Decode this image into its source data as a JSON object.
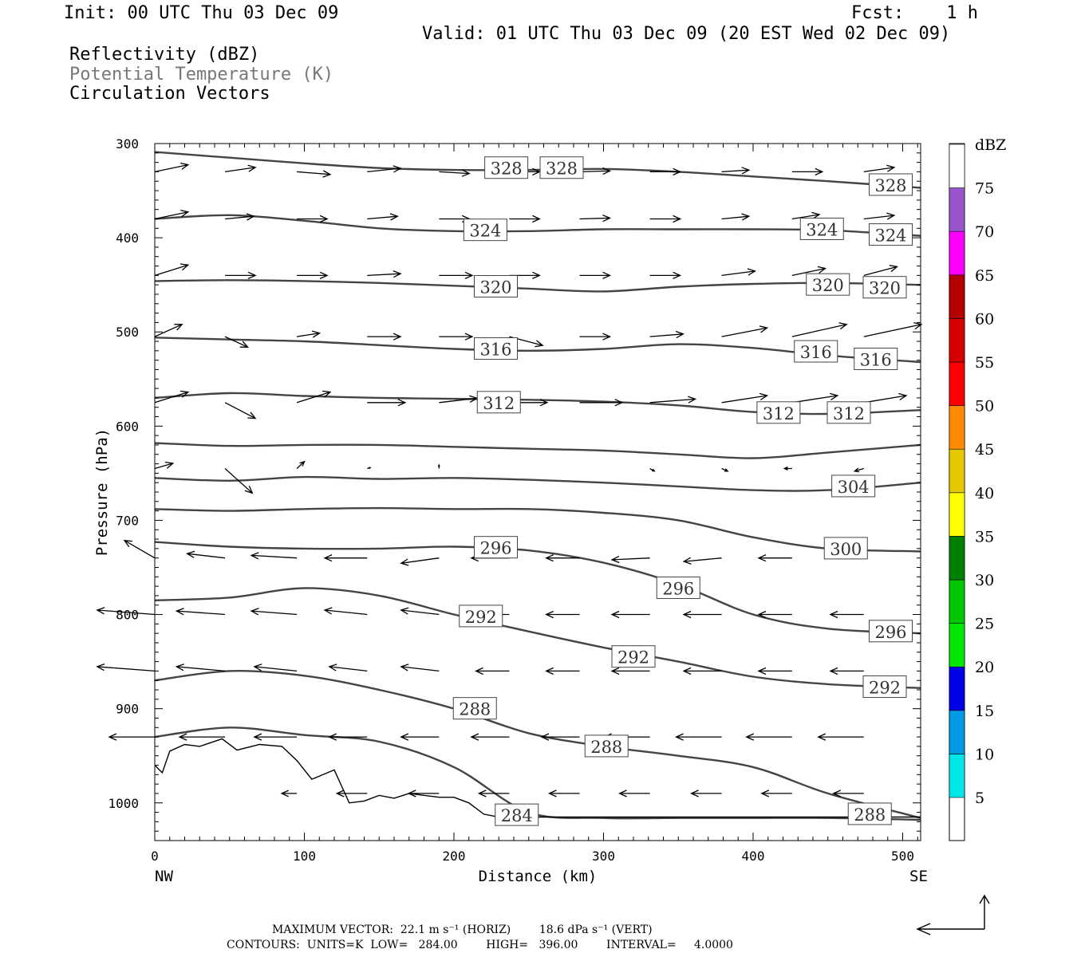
{
  "header": {
    "init": "Init: 00 UTC Thu 03 Dec 09",
    "fcst": "Fcst:    1 h",
    "valid": "Valid: 01 UTC Thu 03 Dec 09 (20 EST Wed 02 Dec 09)",
    "field1": "Reflectivity (dBZ)",
    "field2": "Potential Temperature (K)",
    "field3": "Circulation Vectors"
  },
  "axes": {
    "ylabel": "Pressure (hPa)",
    "xlabel": "Distance (km)",
    "left_end": "NW",
    "right_end": "SE"
  },
  "footer": {
    "max_vector": "MAXIMUM VECTOR:  22.1 m s⁻¹ (HORIZ)        18.6 dPa s⁻¹ (VERT)",
    "contours": "CONTOURS:  UNITS=K  LOW=   284.00        HIGH=   396.00        INTERVAL=     4.0000"
  },
  "colorbar": {
    "title": "dBZ",
    "labels": [
      "5",
      "10",
      "15",
      "20",
      "25",
      "30",
      "35",
      "40",
      "45",
      "50",
      "55",
      "60",
      "65",
      "70",
      "75"
    ],
    "colors": [
      "#00e6e6",
      "#0099e6",
      "#0000e6",
      "#00e600",
      "#00c800",
      "#008000",
      "#ffff00",
      "#e6c800",
      "#ff8c00",
      "#ff0000",
      "#d70000",
      "#b40000",
      "#ff00ff",
      "#9955cc",
      "#ffffff"
    ]
  },
  "chart_data": {
    "type": "contour",
    "xlim": [
      0,
      512
    ],
    "ylim": [
      1040,
      300
    ],
    "y_scale": "linear, inverted",
    "x_ticks": [
      0,
      100,
      200,
      300,
      400,
      500
    ],
    "y_ticks": [
      300,
      400,
      500,
      600,
      700,
      800,
      900,
      1000
    ],
    "contours": [
      {
        "level": 328,
        "x": [
          0,
          50,
          100,
          150,
          200,
          250,
          300,
          350,
          400,
          450,
          512
        ],
        "p": [
          309,
          315,
          321,
          326,
          328,
          328,
          327,
          330,
          335,
          340,
          347
        ]
      },
      {
        "level": 324,
        "x": [
          0,
          50,
          100,
          150,
          200,
          250,
          300,
          350,
          400,
          450,
          512
        ],
        "p": [
          380,
          376,
          382,
          390,
          393,
          393,
          391,
          391,
          391,
          392,
          398
        ]
      },
      {
        "level": 320,
        "x": [
          0,
          50,
          100,
          150,
          200,
          250,
          300,
          350,
          400,
          450,
          512
        ],
        "p": [
          446,
          445,
          446,
          448,
          451,
          454,
          457,
          452,
          449,
          448,
          450
        ]
      },
      {
        "level": 316,
        "x": [
          0,
          50,
          100,
          150,
          200,
          250,
          300,
          350,
          400,
          450,
          512
        ],
        "p": [
          506,
          508,
          510,
          514,
          518,
          520,
          518,
          513,
          517,
          525,
          532
        ]
      },
      {
        "level": 312,
        "x": [
          0,
          50,
          100,
          150,
          200,
          250,
          300,
          350,
          400,
          450,
          512
        ],
        "p": [
          570,
          565,
          568,
          570,
          571,
          572,
          574,
          578,
          585,
          587,
          583
        ]
      },
      {
        "level": 308,
        "x": [
          0,
          50,
          100,
          150,
          200,
          250,
          300,
          350,
          400,
          450,
          512
        ],
        "p": [
          618,
          621,
          620,
          620,
          622,
          624,
          626,
          630,
          634,
          628,
          620
        ]
      },
      {
        "level": 304,
        "x": [
          0,
          50,
          100,
          150,
          200,
          250,
          300,
          350,
          400,
          450,
          512
        ],
        "p": [
          655,
          658,
          654,
          656,
          655,
          657,
          660,
          664,
          668,
          668,
          660
        ]
      },
      {
        "level": 300,
        "x": [
          0,
          50,
          100,
          150,
          200,
          250,
          300,
          350,
          400,
          450,
          512
        ],
        "p": [
          688,
          690,
          688,
          687,
          688,
          688,
          692,
          700,
          718,
          730,
          733
        ]
      },
      {
        "level": 296,
        "x": [
          0,
          50,
          100,
          150,
          200,
          250,
          300,
          350,
          400,
          450,
          512
        ],
        "p": [
          723,
          728,
          730,
          730,
          728,
          732,
          745,
          768,
          800,
          815,
          820
        ]
      },
      {
        "level": 292,
        "x": [
          0,
          50,
          100,
          150,
          200,
          250,
          300,
          350,
          400,
          450,
          512
        ],
        "p": [
          785,
          782,
          772,
          780,
          800,
          818,
          835,
          850,
          866,
          874,
          878
        ]
      },
      {
        "level": 288,
        "x": [
          0,
          50,
          100,
          150,
          200,
          250,
          300,
          350,
          400,
          450,
          512
        ],
        "p": [
          870,
          860,
          865,
          880,
          900,
          926,
          940,
          950,
          962,
          990,
          1016
        ]
      },
      {
        "level": 284,
        "x": [
          0,
          50,
          100,
          150,
          200,
          250,
          300,
          350,
          400,
          450,
          512
        ],
        "p": [
          930,
          920,
          928,
          935,
          962,
          1010,
          1016,
          1016,
          1016,
          1016,
          1018
        ]
      }
    ],
    "contour_labels": [
      {
        "level": 328,
        "x": 235,
        "p": 326
      },
      {
        "level": 328,
        "x": 272,
        "p": 326
      },
      {
        "level": 328,
        "x": 492,
        "p": 344
      },
      {
        "level": 324,
        "x": 221,
        "p": 392
      },
      {
        "level": 324,
        "x": 446,
        "p": 391
      },
      {
        "level": 324,
        "x": 492,
        "p": 397
      },
      {
        "level": 320,
        "x": 228,
        "p": 452
      },
      {
        "level": 320,
        "x": 450,
        "p": 450
      },
      {
        "level": 320,
        "x": 488,
        "p": 453
      },
      {
        "level": 316,
        "x": 228,
        "p": 518
      },
      {
        "level": 316,
        "x": 442,
        "p": 521
      },
      {
        "level": 316,
        "x": 482,
        "p": 529
      },
      {
        "level": 312,
        "x": 230,
        "p": 575
      },
      {
        "level": 312,
        "x": 417,
        "p": 586
      },
      {
        "level": 312,
        "x": 464,
        "p": 586
      },
      {
        "level": 304,
        "x": 467,
        "p": 664
      },
      {
        "level": 300,
        "x": 462,
        "p": 730
      },
      {
        "level": 296,
        "x": 228,
        "p": 729
      },
      {
        "level": 296,
        "x": 350,
        "p": 772
      },
      {
        "level": 296,
        "x": 492,
        "p": 818
      },
      {
        "level": 292,
        "x": 218,
        "p": 802
      },
      {
        "level": 292,
        "x": 320,
        "p": 845
      },
      {
        "level": 292,
        "x": 488,
        "p": 877
      },
      {
        "level": 288,
        "x": 214,
        "p": 900
      },
      {
        "level": 288,
        "x": 302,
        "p": 940
      },
      {
        "level": 288,
        "x": 478,
        "p": 1012
      },
      {
        "level": 284,
        "x": 242,
        "p": 1013
      }
    ],
    "terrain": {
      "x": [
        0,
        5,
        10,
        20,
        30,
        45,
        55,
        70,
        85,
        95,
        105,
        120,
        130,
        140,
        150,
        160,
        170,
        180,
        190,
        200,
        210,
        220,
        230,
        512
      ],
      "p": [
        960,
        968,
        945,
        938,
        940,
        932,
        944,
        938,
        940,
        955,
        975,
        965,
        1000,
        998,
        992,
        995,
        990,
        992,
        994,
        994,
        1000,
        1012,
        1015,
        1015
      ]
    },
    "vectors": {
      "units": {
        "u": "m s⁻¹",
        "w": "dPa s⁻¹ (scaled)"
      },
      "rows": [
        {
          "p": 330,
          "x": [
            0,
            47,
            95,
            142,
            190,
            237,
            284,
            331,
            379,
            426,
            474
          ],
          "u": [
            22,
            20,
            22,
            22,
            20,
            20,
            20,
            20,
            18,
            20,
            20
          ],
          "w": [
            -8,
            -5,
            3,
            -4,
            2,
            0,
            -1,
            0,
            -2,
            0,
            -5
          ]
        },
        {
          "p": 380,
          "x": [
            0,
            47,
            95,
            142,
            190,
            237,
            284,
            331,
            379,
            426,
            474
          ],
          "u": [
            22,
            19,
            20,
            20,
            20,
            20,
            20,
            20,
            18,
            18,
            20
          ],
          "w": [
            -8,
            -3,
            0,
            -3,
            0,
            0,
            -1,
            0,
            -3,
            -5,
            -4
          ]
        },
        {
          "p": 440,
          "x": [
            0,
            47,
            95,
            142,
            190,
            237,
            284,
            331,
            379,
            426,
            474
          ],
          "u": [
            22,
            20,
            20,
            22,
            22,
            20,
            20,
            20,
            22,
            22,
            22
          ],
          "w": [
            -12,
            0,
            0,
            -2,
            0,
            0,
            0,
            0,
            -5,
            -8,
            -10
          ]
        },
        {
          "p": 505,
          "x": [
            0,
            47,
            95,
            142,
            190,
            237,
            284,
            331,
            379,
            426,
            474
          ],
          "u": [
            18,
            15,
            15,
            22,
            22,
            22,
            20,
            22,
            30,
            36,
            38
          ],
          "w": [
            -14,
            12,
            -4,
            0,
            0,
            10,
            0,
            -3,
            -10,
            -14,
            -14
          ]
        },
        {
          "p": 575,
          "x": [
            0,
            47,
            95,
            142,
            190,
            237,
            284,
            331,
            379,
            426,
            474
          ],
          "u": [
            22,
            20,
            22,
            25,
            25,
            25,
            28,
            30,
            30,
            30,
            28
          ],
          "w": [
            -12,
            18,
            -12,
            0,
            -5,
            0,
            0,
            -4,
            -8,
            -8,
            -8
          ]
        },
        {
          "p": 645,
          "x": [
            0,
            47,
            95,
            142,
            190,
            237,
            284,
            331,
            379,
            426,
            474
          ],
          "u": [
            12,
            18,
            5,
            2,
            0,
            0,
            0,
            3,
            4,
            -5,
            -6
          ],
          "w": [
            -6,
            28,
            -8,
            -1,
            -4,
            0,
            0,
            3,
            3,
            0,
            3
          ]
        },
        {
          "p": 740,
          "x": [
            0,
            47,
            95,
            142,
            190,
            237,
            284,
            331,
            379,
            426,
            474
          ],
          "u": [
            -20,
            -25,
            -30,
            -28,
            -25,
            -25,
            -22,
            -25,
            -25,
            -22,
            -20
          ],
          "w": [
            -20,
            -5,
            -3,
            0,
            6,
            0,
            0,
            2,
            4,
            0,
            -5
          ]
        },
        {
          "p": 800,
          "x": [
            0,
            47,
            95,
            142,
            190,
            237,
            284,
            331,
            379,
            426,
            474
          ],
          "u": [
            -38,
            -32,
            -30,
            -28,
            -25,
            -25,
            -22,
            -25,
            -25,
            -22,
            -22
          ],
          "w": [
            -5,
            -4,
            -4,
            -5,
            -5,
            0,
            0,
            0,
            0,
            0,
            0
          ]
        },
        {
          "p": 860,
          "x": [
            0,
            47,
            95,
            142,
            190,
            237,
            284,
            331,
            379,
            426,
            474
          ],
          "u": [
            -38,
            -32,
            -28,
            -25,
            -25,
            -22,
            -22,
            -25,
            -25,
            -22,
            -22
          ],
          "w": [
            -5,
            -5,
            -5,
            -5,
            -5,
            0,
            0,
            0,
            0,
            0,
            0
          ]
        },
        {
          "p": 930,
          "x": [
            0,
            47,
            95,
            142,
            190,
            237,
            284,
            331,
            379,
            426,
            474
          ],
          "u": [
            -30,
            -30,
            -28,
            -25,
            -25,
            -25,
            -25,
            -30,
            -30,
            -30,
            -30
          ],
          "w": [
            0,
            0,
            0,
            0,
            0,
            0,
            0,
            0,
            0,
            0,
            0
          ]
        },
        {
          "p": 990,
          "x": [
            95,
            142,
            190,
            237,
            284,
            331,
            379,
            426,
            474
          ],
          "u": [
            -10,
            -20,
            -20,
            -20,
            -20,
            -20,
            -20,
            -20,
            -20
          ],
          "w": [
            0,
            0,
            0,
            0,
            0,
            0,
            0,
            0,
            0
          ]
        }
      ]
    }
  }
}
